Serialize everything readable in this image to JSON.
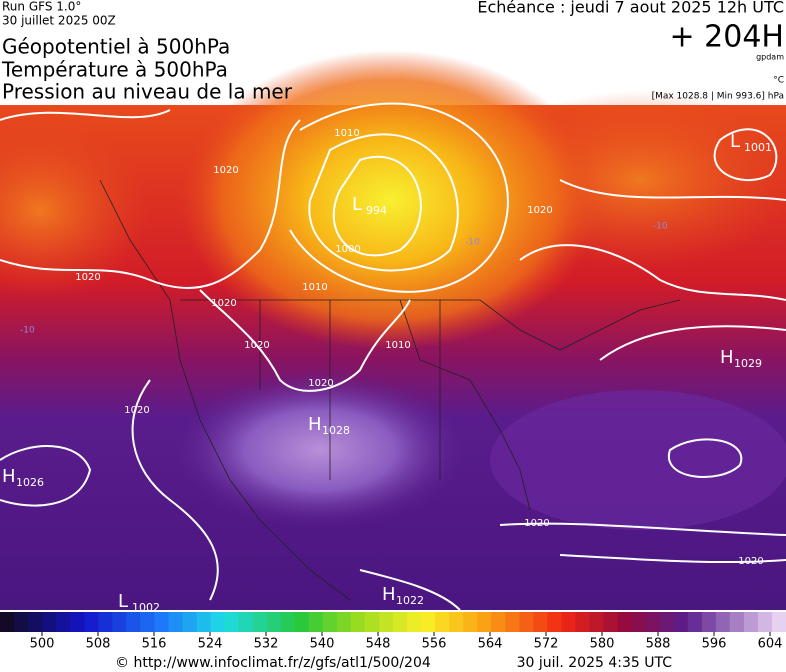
{
  "header": {
    "run": "Run GFS 1.0°",
    "run_date": "30 juillet 2025 00Z",
    "echeance": "Echéance : jeudi 7 aout 2025 12h UTC",
    "lead": "+ 204H",
    "unit_geo": "gpdam",
    "unit_temp": "°C",
    "range": "[Max 1028.8 | Min 993.6] hPa",
    "title_lines": [
      "Géopotentiel à 500hPa",
      "Température à 500hPa",
      "Pression au niveau de la mer"
    ]
  },
  "centers": [
    {
      "letter": "L",
      "value": 1001
    },
    {
      "letter": "L",
      "value": 994
    },
    {
      "letter": "H",
      "value": 1028
    },
    {
      "letter": "H",
      "value": 1029
    },
    {
      "letter": "H",
      "value": 1026
    },
    {
      "letter": "L",
      "value": 1002
    },
    {
      "letter": "H",
      "value": 1022
    }
  ],
  "isobar_labels": [
    1010,
    1020,
    1000,
    1020,
    1020,
    1020,
    1010,
    1010,
    1020,
    1020,
    1020,
    1020,
    1020
  ],
  "temp_labels": [
    -10,
    -10,
    -10
  ],
  "colorbar_ticks": [
    500,
    508,
    516,
    524,
    532,
    540,
    548,
    556,
    564,
    572,
    580,
    588,
    596,
    604
  ],
  "footer": {
    "source": "© http://www.infoclimat.fr/z/gfs/atl1/500/204",
    "generated": "30 juil. 2025  4:35 UTC"
  }
}
